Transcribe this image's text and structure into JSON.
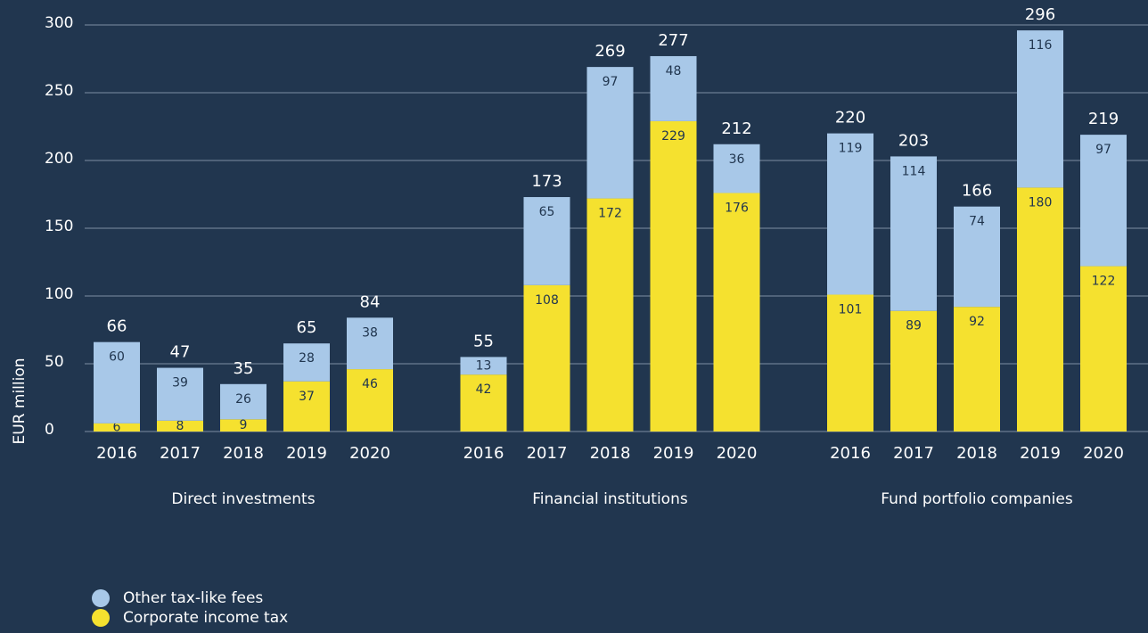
{
  "chart_data": {
    "type": "stacked_bar",
    "y_label": "EUR million",
    "groups": [
      "Direct investments",
      "Financial institutions",
      "Fund portfolio companies"
    ],
    "categories": [
      "2016",
      "2017",
      "2018",
      "2019",
      "2020",
      "2016",
      "2017",
      "2018",
      "2019",
      "2020",
      "2016",
      "2017",
      "2018",
      "2019",
      "2020"
    ],
    "series": [
      {
        "name": "Corporate income tax",
        "color": "#f5e12f",
        "values": [
          6,
          8,
          9,
          37,
          46,
          42,
          108,
          172,
          229,
          176,
          101,
          89,
          92,
          180,
          122
        ]
      },
      {
        "name": "Other tax-like fees",
        "color": "#a8c8e8",
        "values": [
          60,
          39,
          26,
          28,
          38,
          13,
          65,
          97,
          48,
          36,
          119,
          114,
          74,
          116,
          97
        ]
      }
    ],
    "totals": [
      66,
      47,
      35,
      65,
      84,
      55,
      173,
      269,
      277,
      212,
      220,
      203,
      166,
      296,
      219
    ],
    "ylim": [
      0,
      300
    ],
    "yticks": [
      0,
      50,
      100,
      150,
      200,
      250,
      300
    ],
    "grid": true
  }
}
